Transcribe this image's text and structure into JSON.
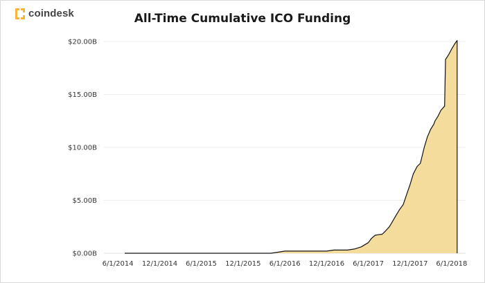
{
  "brand": {
    "name": "coindesk",
    "accent": "#f7b53c",
    "logo_icon": "coindesk-logo-icon"
  },
  "chart_data": {
    "type": "area",
    "title": "All-Time Cumulative ICO Funding",
    "xlabel": "",
    "ylabel": "",
    "x_tick_labels": [
      "6/1/2014",
      "12/1/2014",
      "6/1/2015",
      "12/1/2015",
      "6/1/2016",
      "12/1/2016",
      "6/1/2017",
      "12/1/2017",
      "6/1/2018"
    ],
    "y_tick_labels": [
      "$0.00B",
      "$5.00B",
      "$10.00B",
      "$15.00B",
      "$20.00B"
    ],
    "ylim": [
      0,
      20
    ],
    "y_unit": "billions USD",
    "grid": true,
    "legend": "none",
    "fill_color": "#f4dc9c",
    "line_color": "#111111",
    "series": [
      {
        "x": [
          "2014-07-01",
          "2014-12-01",
          "2015-06-01",
          "2015-12-01",
          "2016-04-01",
          "2016-05-01",
          "2016-06-01",
          "2016-09-01",
          "2016-12-01",
          "2017-01-01",
          "2017-03-01",
          "2017-04-01",
          "2017-05-01",
          "2017-06-01",
          "2017-06-15",
          "2017-07-01",
          "2017-07-15",
          "2017-08-01",
          "2017-08-15",
          "2017-09-01",
          "2017-09-15",
          "2017-10-01",
          "2017-10-15",
          "2017-11-01",
          "2017-11-15",
          "2017-12-01",
          "2017-12-15",
          "2018-01-01",
          "2018-01-15",
          "2018-02-01",
          "2018-02-15",
          "2018-03-01",
          "2018-03-15",
          "2018-03-20",
          "2018-04-01",
          "2018-04-15",
          "2018-05-01",
          "2018-05-05",
          "2018-05-20",
          "2018-06-01",
          "2018-06-15",
          "2018-06-25"
        ],
        "y": [
          0.0,
          0.0,
          0.0,
          0.0,
          0.0,
          0.1,
          0.2,
          0.2,
          0.2,
          0.3,
          0.3,
          0.4,
          0.6,
          1.0,
          1.4,
          1.7,
          1.75,
          1.8,
          2.1,
          2.5,
          3.0,
          3.6,
          4.1,
          4.6,
          5.5,
          6.5,
          7.5,
          8.2,
          8.5,
          10.0,
          11.0,
          11.7,
          12.2,
          12.5,
          12.9,
          13.5,
          13.9,
          18.3,
          18.8,
          19.3,
          19.8,
          20.1
        ]
      }
    ]
  }
}
